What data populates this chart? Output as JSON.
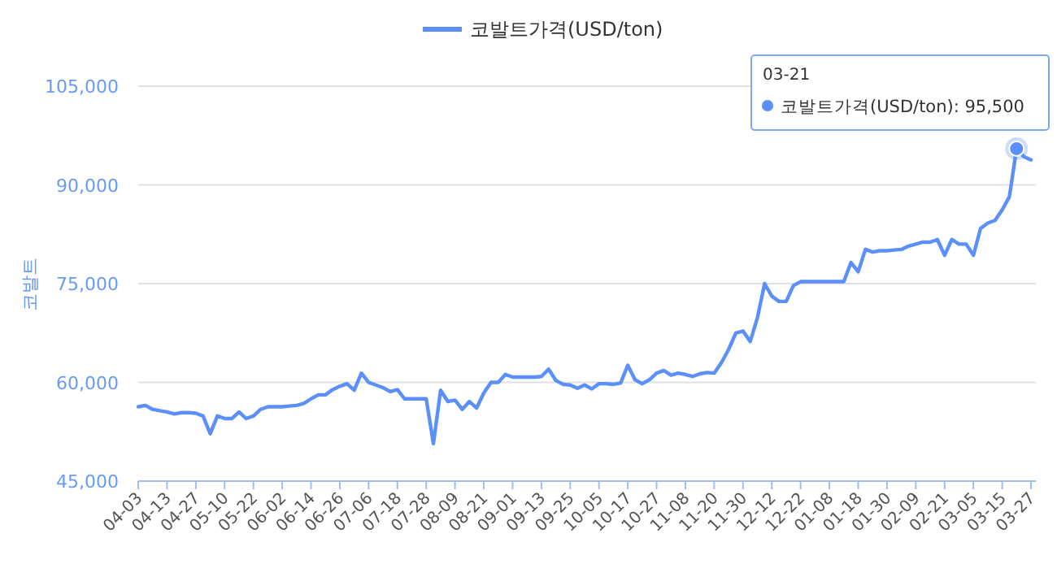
{
  "chart_data": {
    "type": "line",
    "ylabel": "코발트",
    "legend": "top",
    "grid": "y",
    "marker": "none",
    "line_style": "solid",
    "categories": [
      "04-03",
      null,
      null,
      null,
      "04-13",
      null,
      null,
      null,
      "04-27",
      null,
      null,
      null,
      "05-10",
      null,
      null,
      null,
      "05-22",
      null,
      null,
      null,
      "06-02",
      null,
      null,
      null,
      "06-14",
      null,
      null,
      null,
      "06-26",
      null,
      null,
      null,
      "07-06",
      null,
      null,
      null,
      "07-18",
      null,
      null,
      null,
      "07-28",
      null,
      null,
      null,
      "08-09",
      null,
      null,
      null,
      "08-21",
      null,
      null,
      null,
      "09-01",
      null,
      null,
      null,
      "09-13",
      null,
      null,
      null,
      "09-25",
      null,
      null,
      null,
      "10-05",
      null,
      null,
      null,
      "10-17",
      null,
      null,
      null,
      "10-27",
      null,
      null,
      null,
      "11-08",
      null,
      null,
      null,
      "11-20",
      null,
      null,
      null,
      "11-30",
      null,
      null,
      null,
      "12-12",
      null,
      null,
      null,
      "12-22",
      null,
      null,
      null,
      "01-08",
      null,
      null,
      null,
      "01-18",
      null,
      null,
      null,
      "01-30",
      null,
      null,
      null,
      "02-09",
      null,
      null,
      null,
      "02-21",
      null,
      null,
      null,
      "03-05",
      null,
      null,
      null,
      "03-15",
      null,
      null,
      null,
      "03-27"
    ],
    "series": [
      {
        "name": "코발트가격(USD/ton)",
        "color": "#5b8ff9",
        "values": [
          56300,
          56500,
          55900,
          55700,
          55500,
          55200,
          55400,
          55400,
          55300,
          54900,
          52200,
          54900,
          54500,
          54500,
          55500,
          54500,
          54900,
          55900,
          56300,
          56300,
          56300,
          56400,
          56500,
          56800,
          57500,
          58100,
          58100,
          58900,
          59400,
          59800,
          58800,
          61400,
          60000,
          59600,
          59200,
          58600,
          58900,
          57500,
          57500,
          57500,
          57500,
          50700,
          58800,
          57100,
          57300,
          55900,
          57100,
          56100,
          58400,
          60000,
          60000,
          61200,
          60800,
          60800,
          60800,
          60800,
          60900,
          62000,
          60300,
          59700,
          59600,
          59100,
          59600,
          59000,
          59800,
          59800,
          59700,
          59900,
          62600,
          60400,
          59800,
          60400,
          61400,
          61800,
          61100,
          61400,
          61200,
          60900,
          61300,
          61500,
          61400,
          63000,
          65000,
          67500,
          67800,
          66200,
          69800,
          75000,
          73100,
          72300,
          72300,
          74700,
          75300,
          75300,
          75300,
          75300,
          75300,
          75300,
          75300,
          78200,
          76800,
          80200,
          79800,
          80000,
          80000,
          80100,
          80200,
          80700,
          81000,
          81300,
          81300,
          81700,
          79300,
          81700,
          81000,
          81000,
          79300,
          83400,
          84200,
          84600,
          86200,
          88200,
          95500,
          94300,
          93800
        ]
      }
    ],
    "ylim": [
      45000,
      105000
    ],
    "yticks": [
      {
        "value": 45000,
        "label": "45,000"
      },
      {
        "value": 60000,
        "label": "60,000"
      },
      {
        "value": 75000,
        "label": "75,000"
      },
      {
        "value": 90000,
        "label": "90,000"
      },
      {
        "value": 105000,
        "label": "105,000"
      }
    ],
    "annotations": [
      "03-21",
      "코발트가격(USD/ton): 95,500"
    ]
  }
}
